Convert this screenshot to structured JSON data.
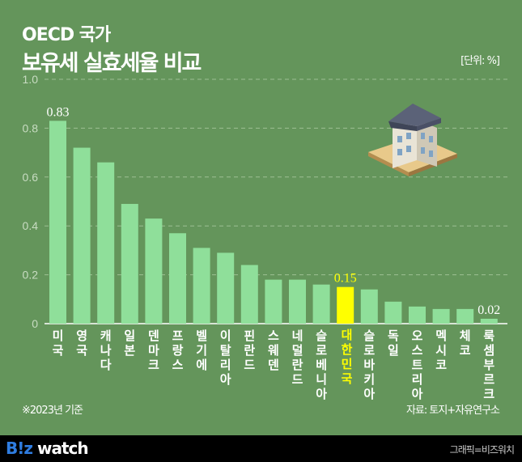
{
  "header": {
    "subtitle": "OECD 국가",
    "title": "보유세 실효세율 비교",
    "unit": "[단위: %]"
  },
  "footer": {
    "note": "※2023년 기준",
    "source": "자료: 토지+자유연구소",
    "logo": "B!z watch",
    "credit": "그래픽=비즈워치"
  },
  "colors": {
    "background": "#64955b",
    "bar": "#8fdf9a",
    "highlight": "#ffff00",
    "footer": "#000000"
  },
  "illustration": "house-icon",
  "chart_data": {
    "type": "bar",
    "title": "보유세 실효세율 비교",
    "categories": [
      "미국",
      "영국",
      "캐나다",
      "일본",
      "덴마크",
      "프랑스",
      "벨기에",
      "이탈리아",
      "핀란드",
      "스웨덴",
      "네덜란드",
      "슬로베니아",
      "대한민국",
      "슬로바키아",
      "독일",
      "오스트리아",
      "멕시코",
      "체코",
      "룩셈부르크"
    ],
    "values": [
      0.83,
      0.72,
      0.66,
      0.49,
      0.43,
      0.37,
      0.31,
      0.29,
      0.24,
      0.18,
      0.18,
      0.16,
      0.15,
      0.14,
      0.09,
      0.07,
      0.06,
      0.06,
      0.02
    ],
    "highlight": "대한민국",
    "data_labels": {
      "미국": "0.83",
      "대한민국": "0.15",
      "룩셈부르크": "0.02"
    },
    "ylim": [
      0,
      1.0
    ],
    "yticks": [
      "0",
      "0.2",
      "0.4",
      "0.6",
      "0.8",
      "1.0"
    ],
    "grid": true
  }
}
